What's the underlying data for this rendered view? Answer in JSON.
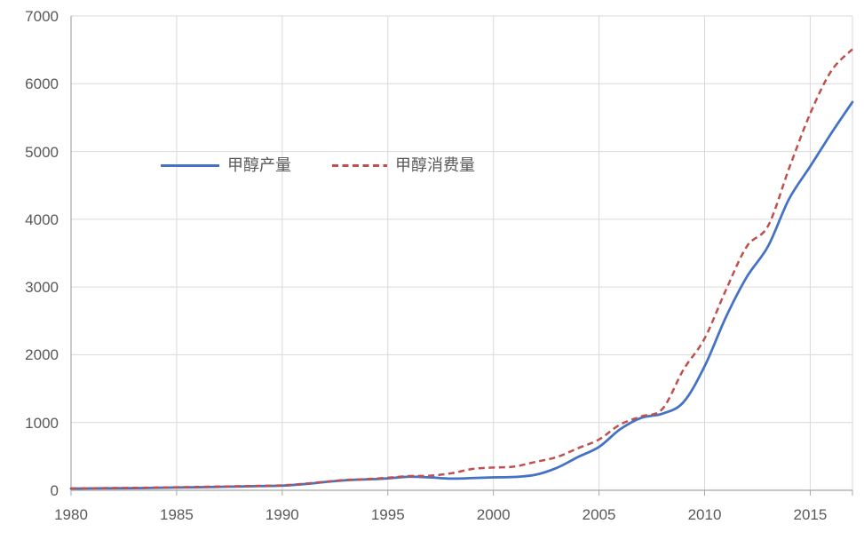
{
  "chart_data": {
    "type": "line",
    "title": "",
    "xlabel": "",
    "ylabel": "",
    "x": [
      1980,
      1981,
      1982,
      1983,
      1984,
      1985,
      1986,
      1987,
      1988,
      1989,
      1990,
      1991,
      1992,
      1993,
      1994,
      1995,
      1996,
      1997,
      1998,
      1999,
      2000,
      2001,
      2002,
      2003,
      2004,
      2005,
      2006,
      2007,
      2008,
      2009,
      2010,
      2011,
      2012,
      2013,
      2014,
      2015,
      2016,
      2017
    ],
    "series": [
      {
        "name": "甲醇产量",
        "color": "#4472C4",
        "line_style": "solid",
        "values": [
          25,
          27,
          29,
          32,
          36,
          40,
          45,
          50,
          56,
          62,
          68,
          90,
          120,
          148,
          160,
          175,
          200,
          190,
          172,
          180,
          190,
          196,
          230,
          330,
          490,
          640,
          900,
          1070,
          1130,
          1300,
          1830,
          2550,
          3150,
          3600,
          4300,
          4780,
          5270,
          5730
        ]
      },
      {
        "name": "甲醇消费量",
        "color": "#C0504D",
        "line_style": "dashed",
        "values": [
          28,
          30,
          33,
          36,
          40,
          44,
          49,
          55,
          60,
          66,
          72,
          95,
          125,
          152,
          165,
          185,
          210,
          215,
          250,
          315,
          335,
          350,
          420,
          490,
          620,
          750,
          970,
          1090,
          1200,
          1780,
          2240,
          2950,
          3600,
          3900,
          4750,
          5560,
          6190,
          6510
        ]
      }
    ],
    "xlim": [
      1980,
      2017
    ],
    "ylim": [
      0,
      7000
    ],
    "yticks": [
      0,
      1000,
      2000,
      3000,
      4000,
      5000,
      6000,
      7000
    ],
    "xticks": [
      1980,
      1985,
      1990,
      1995,
      2000,
      2005,
      2010,
      2015
    ],
    "grid": "on",
    "legend_position": "inside-top-left"
  },
  "colors": {
    "gridline": "#D9D9D9",
    "axis_line": "#A6A6A6",
    "tick_label": "#595959"
  }
}
